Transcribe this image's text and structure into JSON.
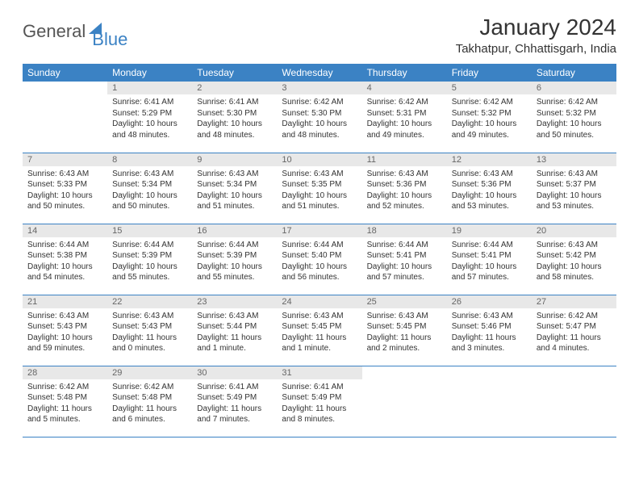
{
  "brand": {
    "part1": "General",
    "part2": "Blue"
  },
  "title": "January 2024",
  "location": "Takhatpur, Chhattisgarh, India",
  "colors": {
    "header_bg": "#3b82c4",
    "daynum_bg": "#e8e8e8",
    "page_bg": "#ffffff",
    "text": "#333333"
  },
  "weekdays": [
    "Sunday",
    "Monday",
    "Tuesday",
    "Wednesday",
    "Thursday",
    "Friday",
    "Saturday"
  ],
  "cells": [
    {
      "n": "",
      "sr": "",
      "ss": "",
      "dl": ""
    },
    {
      "n": "1",
      "sr": "6:41 AM",
      "ss": "5:29 PM",
      "dl": "10 hours and 48 minutes."
    },
    {
      "n": "2",
      "sr": "6:41 AM",
      "ss": "5:30 PM",
      "dl": "10 hours and 48 minutes."
    },
    {
      "n": "3",
      "sr": "6:42 AM",
      "ss": "5:30 PM",
      "dl": "10 hours and 48 minutes."
    },
    {
      "n": "4",
      "sr": "6:42 AM",
      "ss": "5:31 PM",
      "dl": "10 hours and 49 minutes."
    },
    {
      "n": "5",
      "sr": "6:42 AM",
      "ss": "5:32 PM",
      "dl": "10 hours and 49 minutes."
    },
    {
      "n": "6",
      "sr": "6:42 AM",
      "ss": "5:32 PM",
      "dl": "10 hours and 50 minutes."
    },
    {
      "n": "7",
      "sr": "6:43 AM",
      "ss": "5:33 PM",
      "dl": "10 hours and 50 minutes."
    },
    {
      "n": "8",
      "sr": "6:43 AM",
      "ss": "5:34 PM",
      "dl": "10 hours and 50 minutes."
    },
    {
      "n": "9",
      "sr": "6:43 AM",
      "ss": "5:34 PM",
      "dl": "10 hours and 51 minutes."
    },
    {
      "n": "10",
      "sr": "6:43 AM",
      "ss": "5:35 PM",
      "dl": "10 hours and 51 minutes."
    },
    {
      "n": "11",
      "sr": "6:43 AM",
      "ss": "5:36 PM",
      "dl": "10 hours and 52 minutes."
    },
    {
      "n": "12",
      "sr": "6:43 AM",
      "ss": "5:36 PM",
      "dl": "10 hours and 53 minutes."
    },
    {
      "n": "13",
      "sr": "6:43 AM",
      "ss": "5:37 PM",
      "dl": "10 hours and 53 minutes."
    },
    {
      "n": "14",
      "sr": "6:44 AM",
      "ss": "5:38 PM",
      "dl": "10 hours and 54 minutes."
    },
    {
      "n": "15",
      "sr": "6:44 AM",
      "ss": "5:39 PM",
      "dl": "10 hours and 55 minutes."
    },
    {
      "n": "16",
      "sr": "6:44 AM",
      "ss": "5:39 PM",
      "dl": "10 hours and 55 minutes."
    },
    {
      "n": "17",
      "sr": "6:44 AM",
      "ss": "5:40 PM",
      "dl": "10 hours and 56 minutes."
    },
    {
      "n": "18",
      "sr": "6:44 AM",
      "ss": "5:41 PM",
      "dl": "10 hours and 57 minutes."
    },
    {
      "n": "19",
      "sr": "6:44 AM",
      "ss": "5:41 PM",
      "dl": "10 hours and 57 minutes."
    },
    {
      "n": "20",
      "sr": "6:43 AM",
      "ss": "5:42 PM",
      "dl": "10 hours and 58 minutes."
    },
    {
      "n": "21",
      "sr": "6:43 AM",
      "ss": "5:43 PM",
      "dl": "10 hours and 59 minutes."
    },
    {
      "n": "22",
      "sr": "6:43 AM",
      "ss": "5:43 PM",
      "dl": "11 hours and 0 minutes."
    },
    {
      "n": "23",
      "sr": "6:43 AM",
      "ss": "5:44 PM",
      "dl": "11 hours and 1 minute."
    },
    {
      "n": "24",
      "sr": "6:43 AM",
      "ss": "5:45 PM",
      "dl": "11 hours and 1 minute."
    },
    {
      "n": "25",
      "sr": "6:43 AM",
      "ss": "5:45 PM",
      "dl": "11 hours and 2 minutes."
    },
    {
      "n": "26",
      "sr": "6:43 AM",
      "ss": "5:46 PM",
      "dl": "11 hours and 3 minutes."
    },
    {
      "n": "27",
      "sr": "6:42 AM",
      "ss": "5:47 PM",
      "dl": "11 hours and 4 minutes."
    },
    {
      "n": "28",
      "sr": "6:42 AM",
      "ss": "5:48 PM",
      "dl": "11 hours and 5 minutes."
    },
    {
      "n": "29",
      "sr": "6:42 AM",
      "ss": "5:48 PM",
      "dl": "11 hours and 6 minutes."
    },
    {
      "n": "30",
      "sr": "6:41 AM",
      "ss": "5:49 PM",
      "dl": "11 hours and 7 minutes."
    },
    {
      "n": "31",
      "sr": "6:41 AM",
      "ss": "5:49 PM",
      "dl": "11 hours and 8 minutes."
    },
    {
      "n": "",
      "sr": "",
      "ss": "",
      "dl": ""
    },
    {
      "n": "",
      "sr": "",
      "ss": "",
      "dl": ""
    },
    {
      "n": "",
      "sr": "",
      "ss": "",
      "dl": ""
    }
  ],
  "labels": {
    "sunrise": "Sunrise:",
    "sunset": "Sunset:",
    "daylight": "Daylight:"
  }
}
